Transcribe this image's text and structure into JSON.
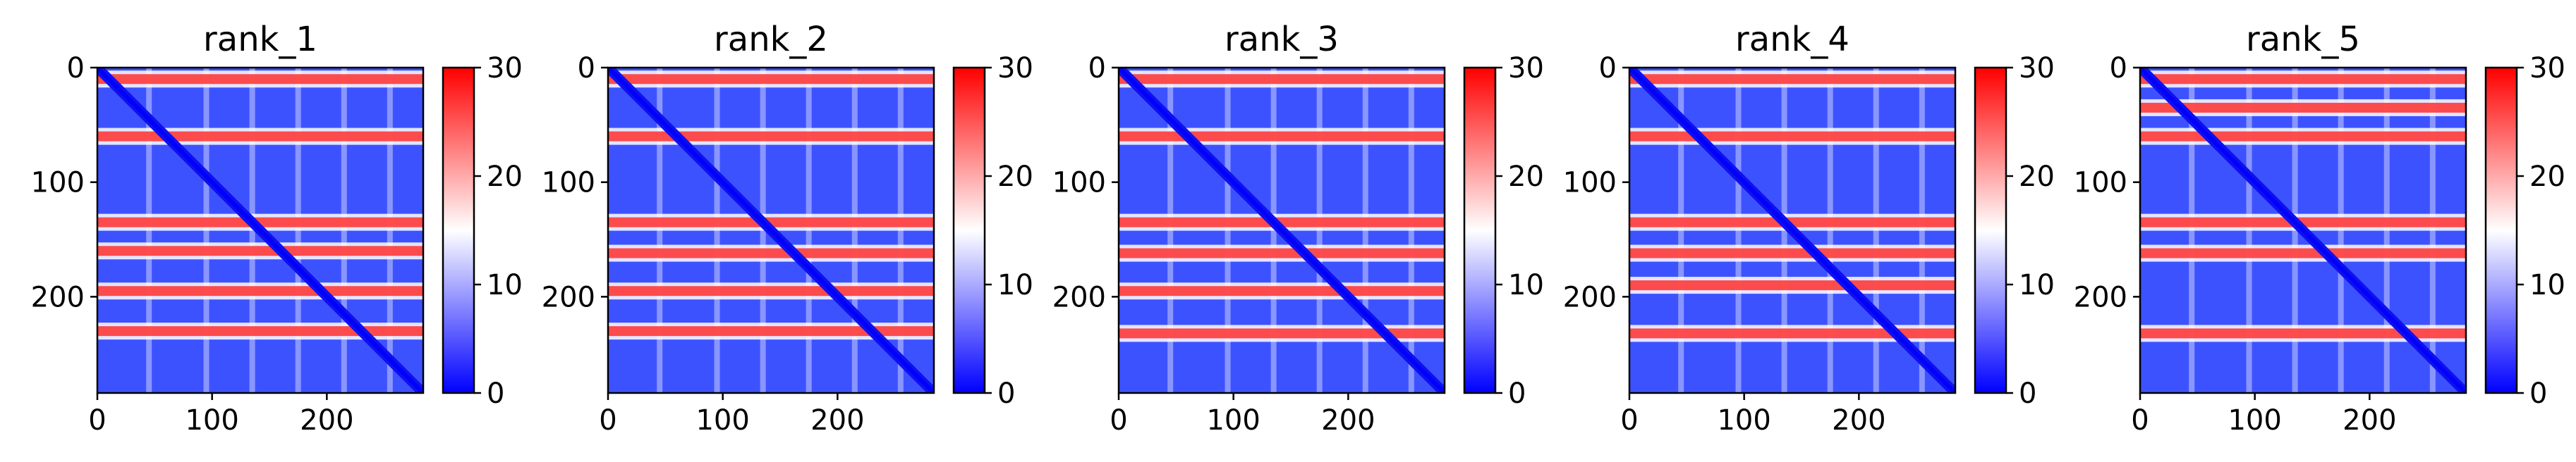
{
  "colors": {
    "low": "#0000ff",
    "mid": "#ffffff",
    "high": "#ff0000",
    "axis": "#000000"
  },
  "colormap": "bwr",
  "chart_data": [
    {
      "type": "heatmap",
      "title": "rank_1",
      "x_range": [
        0,
        284
      ],
      "y_range": [
        0,
        284
      ],
      "x_ticks": [
        "0",
        "100",
        "200"
      ],
      "y_ticks": [
        "0",
        "100",
        "200"
      ],
      "colorbar": {
        "range": [
          0,
          30
        ],
        "ticks": [
          "0",
          "10",
          "20",
          "30"
        ]
      },
      "high_bands": [
        10,
        60,
        135,
        160,
        195,
        230
      ],
      "low_diagonal": true
    },
    {
      "type": "heatmap",
      "title": "rank_2",
      "x_range": [
        0,
        284
      ],
      "y_range": [
        0,
        284
      ],
      "x_ticks": [
        "0",
        "100",
        "200"
      ],
      "y_ticks": [
        "0",
        "100",
        "200"
      ],
      "colorbar": {
        "range": [
          0,
          30
        ],
        "ticks": [
          "0",
          "10",
          "20",
          "30"
        ]
      },
      "high_bands": [
        10,
        60,
        135,
        162,
        195,
        230
      ],
      "low_diagonal": true
    },
    {
      "type": "heatmap",
      "title": "rank_3",
      "x_range": [
        0,
        284
      ],
      "y_range": [
        0,
        284
      ],
      "x_ticks": [
        "0",
        "100",
        "200"
      ],
      "y_ticks": [
        "0",
        "100",
        "200"
      ],
      "colorbar": {
        "range": [
          0,
          30
        ],
        "ticks": [
          "0",
          "10",
          "20",
          "30"
        ]
      },
      "high_bands": [
        10,
        60,
        135,
        162,
        195,
        232
      ],
      "low_diagonal": true
    },
    {
      "type": "heatmap",
      "title": "rank_4",
      "x_range": [
        0,
        284
      ],
      "y_range": [
        0,
        284
      ],
      "x_ticks": [
        "0",
        "100",
        "200"
      ],
      "y_ticks": [
        "0",
        "100",
        "200"
      ],
      "colorbar": {
        "range": [
          0,
          30
        ],
        "ticks": [
          "0",
          "10",
          "20",
          "30"
        ]
      },
      "high_bands": [
        10,
        60,
        135,
        162,
        190,
        232
      ],
      "low_diagonal": true
    },
    {
      "type": "heatmap",
      "title": "rank_5",
      "x_range": [
        0,
        284
      ],
      "y_range": [
        0,
        284
      ],
      "x_ticks": [
        "0",
        "100",
        "200"
      ],
      "y_ticks": [
        "0",
        "100",
        "200"
      ],
      "colorbar": {
        "range": [
          0,
          30
        ],
        "ticks": [
          "0",
          "10",
          "20",
          "30"
        ]
      },
      "high_bands": [
        10,
        35,
        60,
        135,
        162,
        232
      ],
      "low_diagonal": true
    }
  ]
}
